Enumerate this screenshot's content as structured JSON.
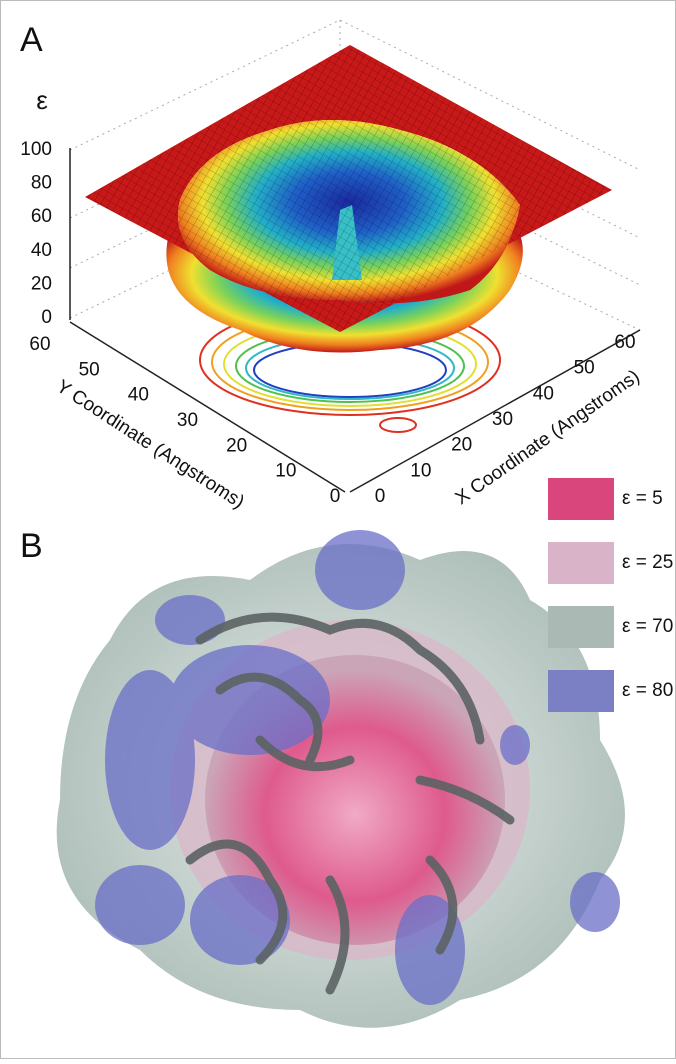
{
  "panels": [
    {
      "label": "A",
      "z_axis": {
        "label": "ε",
        "ticks": [
          0,
          20,
          40,
          60,
          80,
          100
        ]
      },
      "y_axis": {
        "label": "Y Coordinate (Angstroms)",
        "ticks": [
          60,
          50,
          40,
          30,
          20,
          10,
          0
        ]
      },
      "x_axis": {
        "label": "X Coordinate (Angstroms)",
        "ticks": [
          0,
          10,
          20,
          30,
          40,
          50,
          60
        ]
      }
    },
    {
      "label": "B",
      "legend": [
        {
          "label": "ε = 5",
          "color": "#d9467c"
        },
        {
          "label": "ε = 25",
          "color": "#d9b3c8"
        },
        {
          "label": "ε = 70",
          "color": "#aab9b4"
        },
        {
          "label": "ε = 80",
          "color": "#7b7fc4"
        }
      ]
    }
  ]
}
